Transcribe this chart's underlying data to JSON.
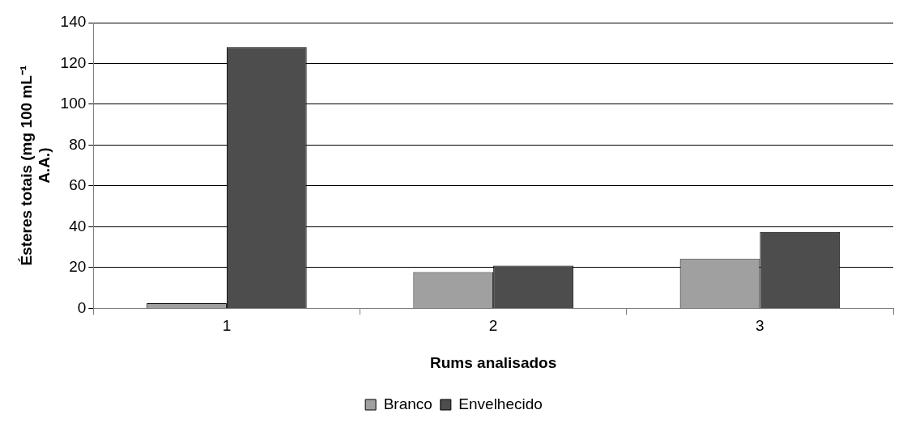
{
  "chart_data": {
    "type": "bar",
    "xlabel": "Rums analisados",
    "ylabel": "Ésteres totais (mg 100 mL⁻¹ A.A.)",
    "categories": [
      "1",
      "2",
      "3"
    ],
    "series": [
      {
        "name": "Branco",
        "color": "#a0a0a0",
        "values": [
          2.5,
          17.8,
          24.2
        ]
      },
      {
        "name": "Envelhecido",
        "color": "#4d4d4d",
        "values": [
          128,
          21,
          37.5
        ]
      }
    ],
    "ylim": [
      0,
      140
    ],
    "yticks": [
      0,
      20,
      40,
      60,
      80,
      100,
      120,
      140
    ],
    "grid": "y",
    "legend": "bottom"
  }
}
